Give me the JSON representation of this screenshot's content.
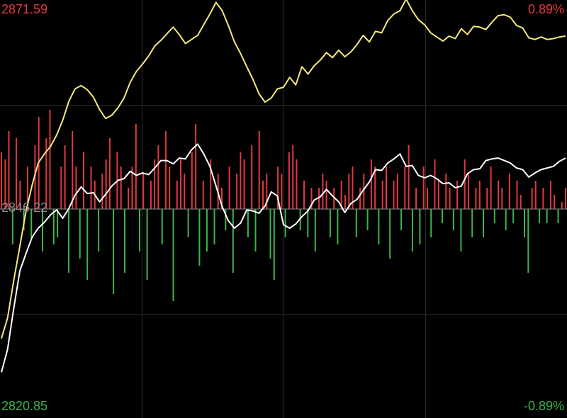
{
  "chart_data": {
    "type": "line",
    "labels": {
      "price_high": "2871.59",
      "price_low": "2820.85",
      "pct_high": "0.89%",
      "pct_low": "-0.89%",
      "prev_close": "2846.22"
    },
    "ylim": [
      2820.85,
      2871.59
    ],
    "y_pct_range": [
      -0.89,
      0.89
    ],
    "grid": true,
    "colors": {
      "background": "#000000",
      "grid": "#2b2b2b",
      "up": "#e0393e",
      "down": "#39b54a",
      "yellow_line": "#f5e87a",
      "white_line": "#ffffff",
      "baseline": "#888888"
    },
    "series": [
      {
        "color_key": "yellow_line",
        "values": [
          2830.5,
          2833.0,
          2837.5,
          2841.7,
          2845.9,
          2849.1,
          2851.8,
          2852.9,
          2853.8,
          2855.2,
          2857.0,
          2859.3,
          2860.8,
          2861.2,
          2860.7,
          2859.8,
          2858.3,
          2857.2,
          2857.6,
          2858.5,
          2859.7,
          2861.6,
          2862.9,
          2863.8,
          2864.8,
          2866.0,
          2866.7,
          2867.5,
          2868.3,
          2867.4,
          2866.3,
          2866.8,
          2867.3,
          2868.6,
          2869.9,
          2871.3,
          2870.3,
          2868.5,
          2866.5,
          2865.1,
          2863.5,
          2862.0,
          2860.2,
          2859.2,
          2859.7,
          2860.8,
          2861.0,
          2862.2,
          2861.3,
          2863.5,
          2862.6,
          2863.6,
          2864.3,
          2865.2,
          2864.6,
          2865.5,
          2864.7,
          2865.3,
          2866.2,
          2867.3,
          2866.5,
          2867.8,
          2867.6,
          2869.1,
          2869.9,
          2870.3,
          2871.7,
          2870.3,
          2869.2,
          2868.6,
          2867.6,
          2867.1,
          2866.6,
          2867.2,
          2866.9,
          2868.1,
          2867.4,
          2868.4,
          2868.3,
          2868.0,
          2868.9,
          2869.7,
          2869.8,
          2869.5,
          2868.5,
          2868.2,
          2867.0,
          2866.8,
          2867.1,
          2866.8,
          2866.9,
          2867.1,
          2867.2
        ]
      },
      {
        "color_key": "white_line",
        "values": [
          2826.4,
          2829.2,
          2834.1,
          2838.7,
          2840.8,
          2842.8,
          2843.9,
          2844.6,
          2845.5,
          2846.1,
          2845.1,
          2846.3,
          2847.9,
          2848.9,
          2848.1,
          2848.2,
          2847.1,
          2848.0,
          2849.0,
          2849.7,
          2849.9,
          2850.8,
          2850.3,
          2850.6,
          2850.4,
          2851.2,
          2852.1,
          2852.1,
          2851.7,
          2852.4,
          2852.3,
          2853.4,
          2854.1,
          2852.9,
          2851.4,
          2849.0,
          2846.5,
          2844.8,
          2843.9,
          2844.5,
          2846.1,
          2846.0,
          2845.7,
          2846.6,
          2848.3,
          2847.8,
          2844.3,
          2843.9,
          2844.4,
          2845.3,
          2846.0,
          2847.3,
          2847.7,
          2848.6,
          2847.8,
          2847.1,
          2845.8,
          2846.9,
          2847.4,
          2848.5,
          2849.5,
          2851.0,
          2850.9,
          2851.8,
          2852.3,
          2852.9,
          2851.4,
          2851.5,
          2850.3,
          2850.0,
          2850.3,
          2849.9,
          2849.3,
          2849.4,
          2848.8,
          2849.0,
          2850.5,
          2851.0,
          2851.1,
          2852.1,
          2852.3,
          2852.4,
          2852.1,
          2851.8,
          2851.2,
          2851.0,
          2850.1,
          2850.6,
          2851.0,
          2851.2,
          2851.4,
          2852.0,
          2852.4
        ]
      }
    ],
    "volume_bars": [
      0.4,
      0.35,
      0.55,
      -0.25,
      0.5,
      0.2,
      -0.15,
      0.3,
      -0.2,
      0.45,
      0.65,
      -0.3,
      0.5,
      0.7,
      -0.25,
      -0.2,
      0.3,
      0.45,
      -0.45,
      0.55,
      0.3,
      -0.35,
      0.4,
      -0.5,
      0.3,
      0.2,
      -0.3,
      0.25,
      0.35,
      0.5,
      -0.6,
      0.4,
      0.3,
      -0.45,
      0.15,
      0.3,
      0.6,
      -0.3,
      0.25,
      -0.5,
      0.2,
      0.35,
      0.45,
      -0.25,
      0.55,
      0.3,
      -0.65,
      0.2,
      0.35,
      0.25,
      -0.2,
      0.4,
      0.6,
      -0.4,
      0.2,
      -0.3,
      0.35,
      -0.25,
      0.25,
      0.15,
      -0.15,
      0.3,
      -0.45,
      0.25,
      0.4,
      0.35,
      -0.2,
      0.45,
      -0.3,
      0.55,
      0.2,
      0.25,
      -0.35,
      -0.5,
      0.3,
      0.25,
      -0.2,
      0.4,
      0.45,
      0.35,
      -0.15,
      0.2,
      -0.2,
      0.15,
      -0.3,
      0.15,
      0.25,
      0.2,
      -0.2,
      0.15,
      -0.25,
      0.2,
      0.1,
      0.25,
      0.3,
      -0.2,
      0.15,
      0.25,
      -0.15,
      0.35,
      0.3,
      -0.25,
      0.2,
      0.3,
      -0.35,
      0.2,
      0.25,
      -0.15,
      0.3,
      0.45,
      -0.3,
      0.15,
      -0.25,
      0.3,
      0.15,
      -0.2,
      0.35,
      0.2,
      -0.1,
      0.25,
      0.15,
      -0.15,
      0.2,
      -0.3,
      0.35,
      0.25,
      -0.2,
      0.15,
      0.2,
      -0.2,
      0.15,
      0.3,
      -0.1,
      0.2,
      0.15,
      -0.15,
      0.25,
      -0.1,
      0.2,
      0.1,
      -0.2,
      -0.45,
      0.15,
      0.2,
      -0.1,
      0.15,
      -0.1,
      0.2,
      0.1,
      -0.1,
      0.05,
      0.15
    ]
  }
}
